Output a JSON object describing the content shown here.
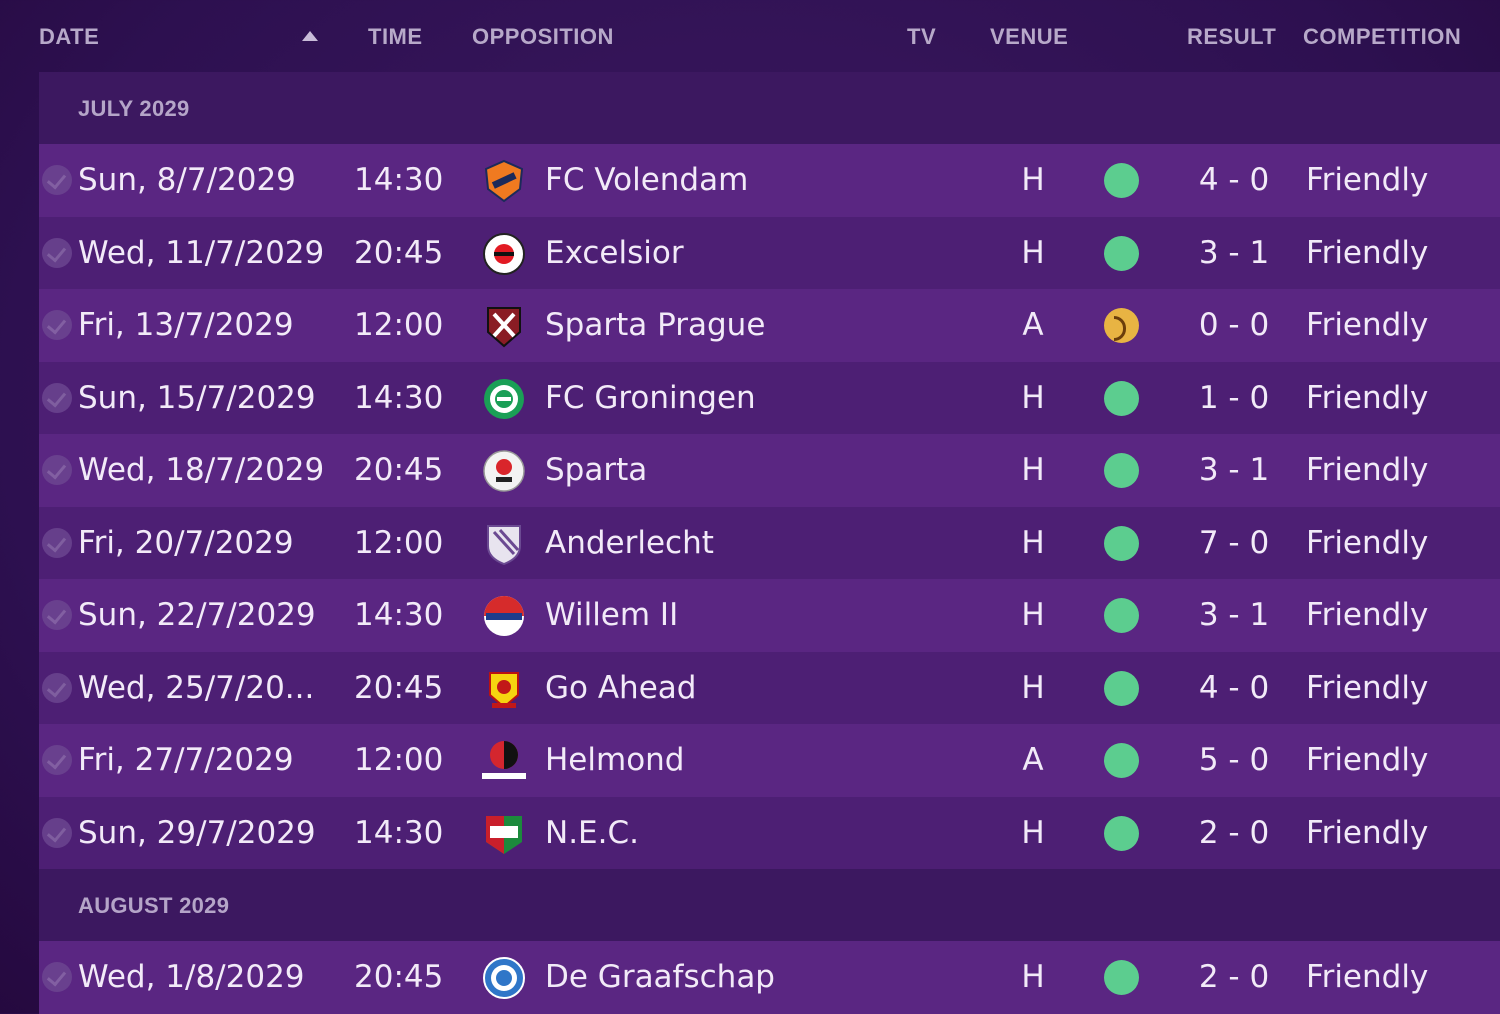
{
  "columns": {
    "date": "DATE",
    "time": "TIME",
    "opposition": "OPPOSITION",
    "tv": "TV",
    "venue": "VENUE",
    "result": "RESULT",
    "competition": "COMPETITION"
  },
  "sort": {
    "column": "date",
    "direction": "ascending",
    "icon": "sort-up-icon"
  },
  "months": [
    {
      "label": "JULY 2029",
      "matches": [
        {
          "date": "Sun, 8/7/2029",
          "time": "14:30",
          "opposition": "FC Volendam",
          "venue": "H",
          "outcome": "win",
          "result": "4 - 0",
          "competition": "Friendly",
          "badge": "volendam"
        },
        {
          "date": "Wed, 11/7/2029",
          "time": "20:45",
          "opposition": "Excelsior",
          "venue": "H",
          "outcome": "win",
          "result": "3 - 1",
          "competition": "Friendly",
          "badge": "excelsior"
        },
        {
          "date": "Fri, 13/7/2029",
          "time": "12:00",
          "opposition": "Sparta Prague",
          "venue": "A",
          "outcome": "draw",
          "result": "0 - 0",
          "competition": "Friendly",
          "badge": "sparta-prague"
        },
        {
          "date": "Sun, 15/7/2029",
          "time": "14:30",
          "opposition": "FC Groningen",
          "venue": "H",
          "outcome": "win",
          "result": "1 - 0",
          "competition": "Friendly",
          "badge": "groningen"
        },
        {
          "date": "Wed, 18/7/2029",
          "time": "20:45",
          "opposition": "Sparta",
          "venue": "H",
          "outcome": "win",
          "result": "3 - 1",
          "competition": "Friendly",
          "badge": "sparta"
        },
        {
          "date": "Fri, 20/7/2029",
          "time": "12:00",
          "opposition": "Anderlecht",
          "venue": "H",
          "outcome": "win",
          "result": "7 - 0",
          "competition": "Friendly",
          "badge": "anderlecht"
        },
        {
          "date": "Sun, 22/7/2029",
          "time": "14:30",
          "opposition": "Willem II",
          "venue": "H",
          "outcome": "win",
          "result": "3 - 1",
          "competition": "Friendly",
          "badge": "willem"
        },
        {
          "date": "Wed, 25/7/20...",
          "time": "20:45",
          "opposition": "Go Ahead",
          "venue": "H",
          "outcome": "win",
          "result": "4 - 0",
          "competition": "Friendly",
          "badge": "goahead"
        },
        {
          "date": "Fri, 27/7/2029",
          "time": "12:00",
          "opposition": "Helmond",
          "venue": "A",
          "outcome": "win",
          "result": "5 - 0",
          "competition": "Friendly",
          "badge": "helmond"
        },
        {
          "date": "Sun, 29/7/2029",
          "time": "14:30",
          "opposition": "N.E.C.",
          "venue": "H",
          "outcome": "win",
          "result": "2 - 0",
          "competition": "Friendly",
          "badge": "nec"
        }
      ]
    },
    {
      "label": "AUGUST 2029",
      "matches": [
        {
          "date": "Wed, 1/8/2029",
          "time": "20:45",
          "opposition": "De Graafschap",
          "venue": "H",
          "outcome": "win",
          "result": "2 - 0",
          "competition": "Friendly",
          "badge": "graafschap"
        }
      ]
    }
  ],
  "colors": {
    "win": "#5ccd8f",
    "draw": "#e8b443"
  }
}
